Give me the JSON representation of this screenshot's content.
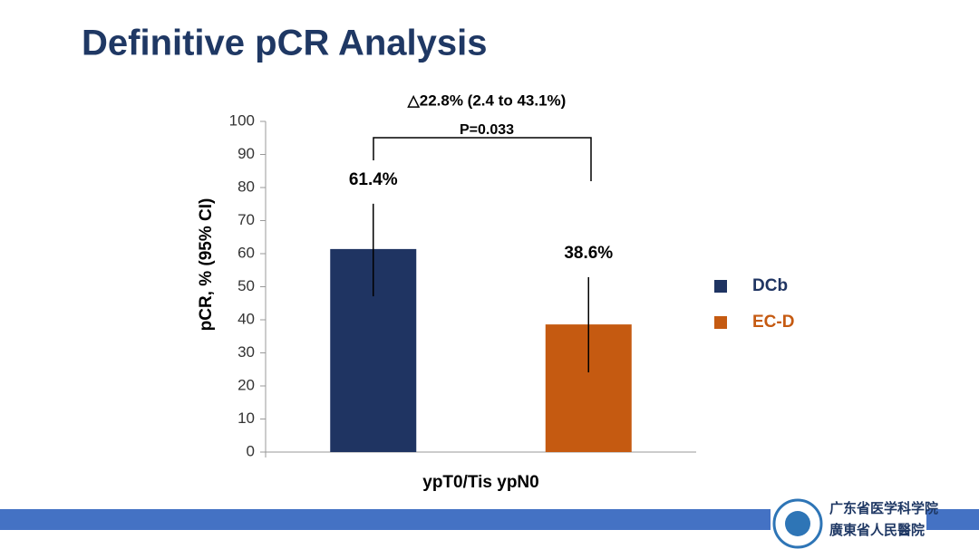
{
  "title": "Definitive pCR Analysis",
  "chart_data": {
    "type": "bar",
    "annotation": "△22.8% (2.4 to 43.1%)",
    "p_value": "P=0.033",
    "y_label": "pCR, % (95% CI)",
    "categories": [
      "ypT0/Tis ypN0"
    ],
    "series": [
      {
        "name": "DCb",
        "color": "#1f3462",
        "values": [
          61.4
        ],
        "value_labels": [
          "61.4%"
        ],
        "ci_low": [
          47.1
        ],
        "ci_high": [
          75.1
        ]
      },
      {
        "name": "EC-D",
        "color": "#c55a11",
        "values": [
          38.6
        ],
        "value_labels": [
          "38.6%"
        ],
        "ci_low": [
          24.1
        ],
        "ci_high": [
          52.9
        ]
      }
    ],
    "ylim": [
      0,
      100
    ],
    "yticks": [
      0,
      10,
      20,
      30,
      40,
      50,
      60,
      70,
      80,
      90,
      100
    ],
    "legend": "right"
  },
  "logo": {
    "line1": "广东省医学科学院",
    "line2": "廣東省人民醫院"
  }
}
